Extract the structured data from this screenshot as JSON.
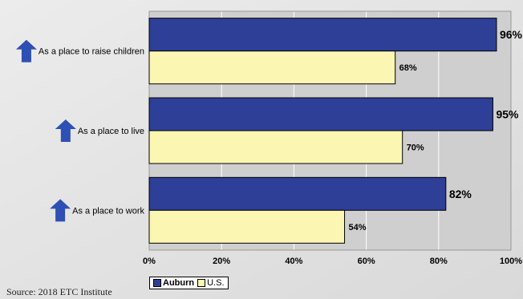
{
  "chart_data": {
    "type": "bar",
    "orientation": "horizontal",
    "categories": [
      "As a place to raise children",
      "As a place to live",
      "As a place to work"
    ],
    "series": [
      {
        "name": "Auburn",
        "values": [
          96,
          95,
          82
        ],
        "color": "#2e3f98"
      },
      {
        "name": "U.S.",
        "values": [
          68,
          70,
          54
        ],
        "color": "#fbf7b2"
      }
    ],
    "data_labels": {
      "Auburn": [
        "96%",
        "95%",
        "82%"
      ],
      "U.S.": [
        "68%",
        "70%",
        "54%"
      ]
    },
    "x_ticks": [
      "0%",
      "20%",
      "40%",
      "60%",
      "80%",
      "100%"
    ],
    "xlim": [
      0,
      100
    ],
    "grid": true,
    "legend_position": "bottom-left",
    "category_marker": "up-arrow-icon",
    "arrow_color": "#2e50b4",
    "plot_background": "#cfcfcf"
  },
  "source_text": "Source:  2018 ETC Institute"
}
